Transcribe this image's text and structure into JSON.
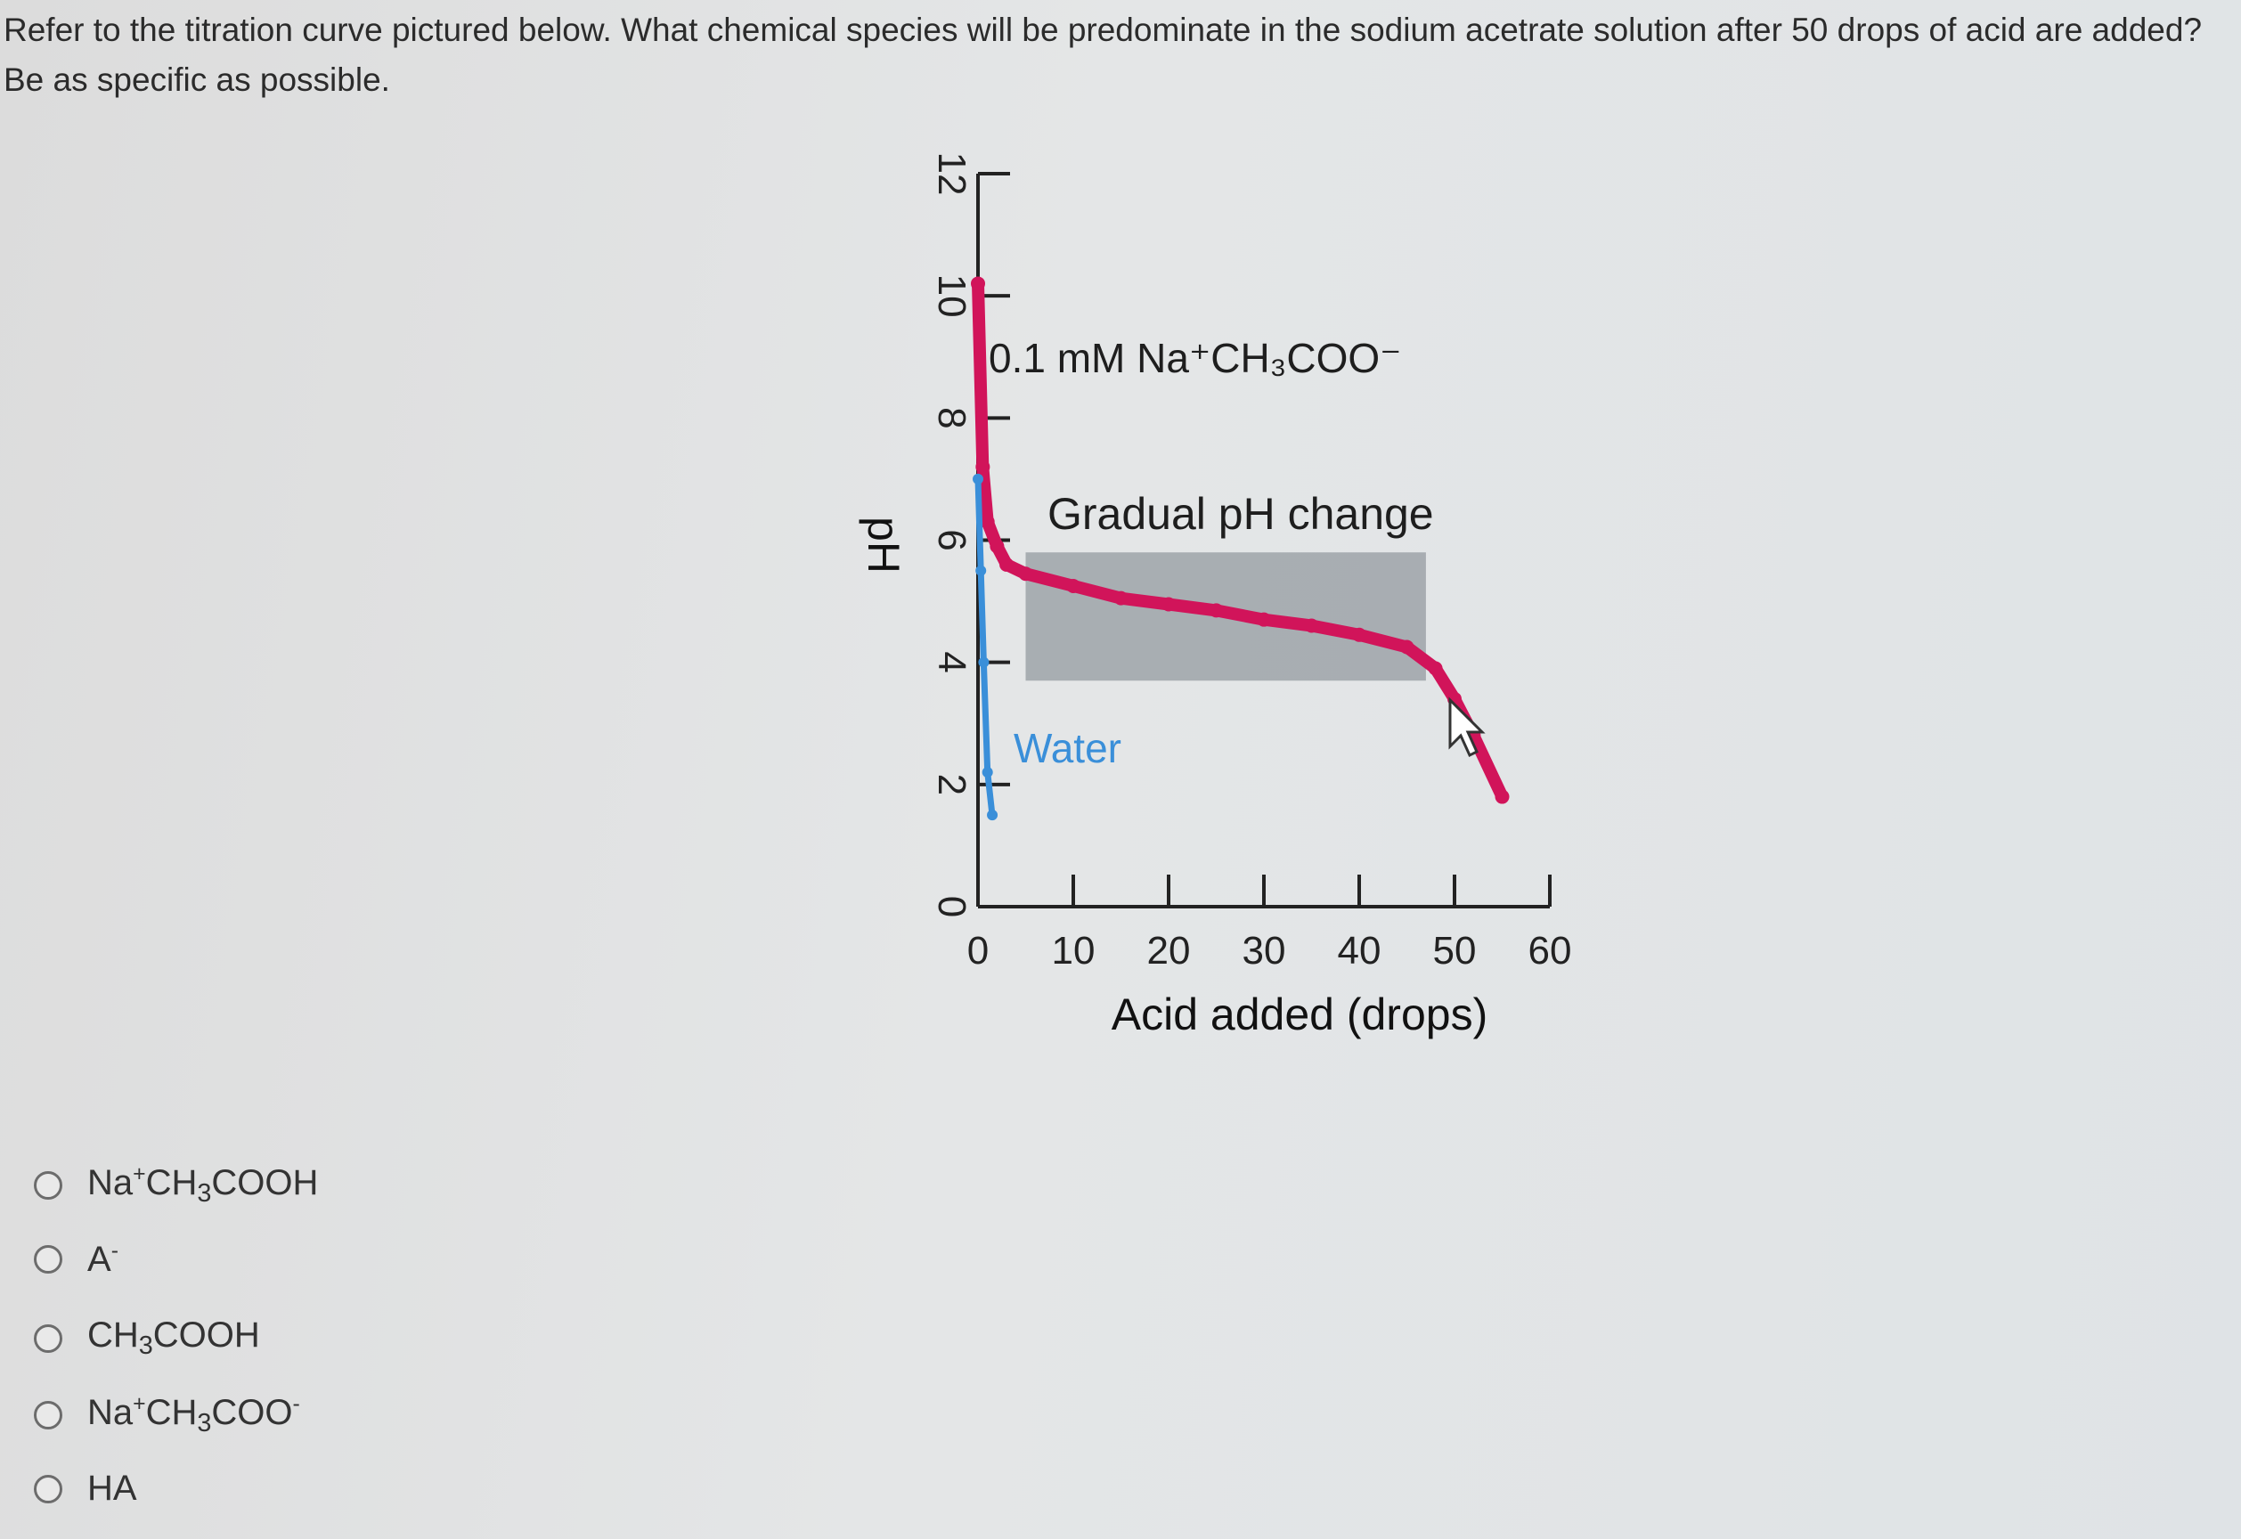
{
  "question": {
    "text": "Refer to the titration curve pictured below. What chemical species will be predominate in the sodium acetrate solution after 50 drops of acid are added? Be as specific as possible."
  },
  "chart_data": {
    "type": "line",
    "xlabel": "Acid added (drops)",
    "ylabel": "pH",
    "xlim": [
      0,
      60
    ],
    "ylim": [
      0,
      12
    ],
    "x_ticks": [
      "0",
      "10",
      "20",
      "30",
      "40",
      "50",
      "60"
    ],
    "y_ticks": [
      "0",
      "2",
      "4",
      "6",
      "8",
      "10",
      "12"
    ],
    "series": [
      {
        "name": "0.1 mM Na⁺CH₃COO⁻",
        "color": "#d1145a",
        "points": [
          [
            0,
            10.2
          ],
          [
            0.5,
            7.2
          ],
          [
            1,
            6.3
          ],
          [
            2,
            5.9
          ],
          [
            3,
            5.6
          ],
          [
            5,
            5.45
          ],
          [
            10,
            5.25
          ],
          [
            15,
            5.05
          ],
          [
            20,
            4.95
          ],
          [
            25,
            4.85
          ],
          [
            30,
            4.7
          ],
          [
            35,
            4.6
          ],
          [
            40,
            4.45
          ],
          [
            45,
            4.25
          ],
          [
            48,
            3.9
          ],
          [
            50,
            3.4
          ],
          [
            52,
            2.8
          ],
          [
            55,
            1.8
          ]
        ]
      },
      {
        "name": "Water",
        "color": "#3a8fd9",
        "points": [
          [
            0,
            7.0
          ],
          [
            0.3,
            5.5
          ],
          [
            0.6,
            4.0
          ],
          [
            1,
            2.2
          ],
          [
            1.5,
            1.5
          ]
        ]
      }
    ],
    "annotations": [
      "Gradual pH change"
    ],
    "shaded_region": {
      "x": [
        5,
        47
      ],
      "y": [
        3.7,
        5.8
      ],
      "color": "#9ea3a8"
    },
    "grid": false
  },
  "options": [
    {
      "label_parts": [
        "Na",
        "+",
        "CH",
        "3",
        "COOH"
      ]
    },
    {
      "label_parts": [
        "A",
        "-"
      ]
    },
    {
      "label_parts": [
        "CH",
        "3",
        "COOH"
      ]
    },
    {
      "label_parts": [
        "Na",
        "+",
        "CH",
        "3",
        "COO",
        "-"
      ]
    },
    {
      "label_parts": [
        "HA"
      ]
    }
  ]
}
